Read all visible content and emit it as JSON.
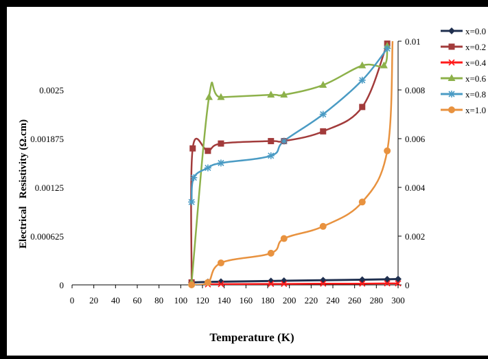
{
  "chart_data": {
    "type": "line",
    "title": "",
    "xlabel": "Temperature (K)",
    "ylabel_left": "Electrical   Resistivity (Ω.cm)",
    "ylabel_right": "",
    "x_ticks": [
      "0",
      "20",
      "40",
      "60",
      "80",
      "100",
      "120",
      "140",
      "160",
      "180",
      "200",
      "220",
      "240",
      "260",
      "280",
      "300"
    ],
    "y_left_ticks": [
      "0",
      "0.000625",
      "0.00125",
      "0.001875",
      "0.0025"
    ],
    "y_right_ticks": [
      "0",
      "0.002",
      "0.004",
      "0.006",
      "0.008",
      "0.01"
    ],
    "xlim": [
      0,
      300
    ],
    "ylim_left": [
      0,
      0.003125
    ],
    "ylim_right": [
      0,
      0.01
    ],
    "legend_position": "right",
    "series": [
      {
        "name": "x=0.0",
        "color": "#1f2f4f",
        "marker": "diamond",
        "axis": "right",
        "linewidth": 3,
        "x": [
          110,
          125,
          137,
          183,
          195,
          231,
          267,
          290,
          300
        ],
        "y": [
          0.0001,
          0.00012,
          0.00013,
          0.00016,
          0.00017,
          0.00019,
          0.00021,
          0.00023,
          0.00024
        ]
      },
      {
        "name": "x=0.2",
        "color": "#a23b3b",
        "marker": "square",
        "axis": "right",
        "linewidth": 2.5,
        "x": [
          110,
          111,
          125,
          137,
          183,
          195,
          231,
          267,
          290,
          292
        ],
        "y": [
          0.0001,
          0.0056,
          0.0055,
          0.0058,
          0.0059,
          0.0059,
          0.0063,
          0.0073,
          0.0099,
          0.0101
        ]
      },
      {
        "name": "x=0.4",
        "color": "#ff1a1a",
        "marker": "x",
        "axis": "right",
        "linewidth": 2.5,
        "x": [
          125,
          137,
          183,
          195,
          231,
          267,
          290,
          300
        ],
        "y": [
          2e-05,
          3e-05,
          4e-05,
          4e-05,
          5e-05,
          5e-05,
          6e-05,
          6e-05
        ]
      },
      {
        "name": "x=0.6",
        "color": "#8db14a",
        "marker": "triangle",
        "axis": "right",
        "linewidth": 2.5,
        "x": [
          110,
          126,
          137,
          183,
          195,
          231,
          267,
          287,
          290
        ],
        "y": [
          0.0001,
          0.0077,
          0.0077,
          0.0078,
          0.0078,
          0.0082,
          0.009,
          0.009,
          0.0098
        ]
      },
      {
        "name": "x=0.8",
        "color": "#4a9bc4",
        "marker": "star",
        "axis": "right",
        "linewidth": 2.5,
        "x": [
          110,
          112,
          125,
          137,
          183,
          195,
          231,
          267,
          290
        ],
        "y": [
          0.0034,
          0.0044,
          0.0048,
          0.005,
          0.0053,
          0.0059,
          0.007,
          0.0084,
          0.0097
        ]
      },
      {
        "name": "x=1.0",
        "color": "#e8923f",
        "marker": "circle",
        "axis": "right",
        "linewidth": 2.5,
        "x": [
          110,
          125,
          137,
          183,
          195,
          231,
          267,
          290,
          295
        ],
        "y": [
          0.0,
          0.0001,
          0.0009,
          0.0013,
          0.0019,
          0.0024,
          0.0034,
          0.0055,
          0.0101
        ]
      }
    ]
  }
}
